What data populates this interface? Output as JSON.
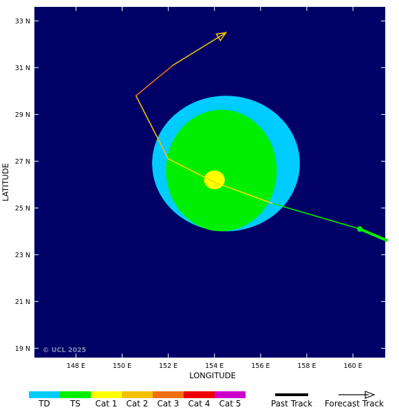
{
  "map": {
    "background_color": "#000066",
    "copyright": "© UCL 2025",
    "xlabel": "LONGITUDE",
    "ylabel": "LATITUDE",
    "xlim": [
      146.2,
      161.4
    ],
    "ylim": [
      18.6,
      33.6
    ],
    "x_ticks": [
      {
        "value": 148,
        "label": "148 E"
      },
      {
        "value": 150,
        "label": "150 E"
      },
      {
        "value": 152,
        "label": "152 E"
      },
      {
        "value": 154,
        "label": "154 E"
      },
      {
        "value": 156,
        "label": "156 E"
      },
      {
        "value": 158,
        "label": "158 E"
      },
      {
        "value": 160,
        "label": "160 E"
      }
    ],
    "y_ticks": [
      {
        "value": 19,
        "label": "19 N"
      },
      {
        "value": 21,
        "label": "21 N"
      },
      {
        "value": 23,
        "label": "23 N"
      },
      {
        "value": 25,
        "label": "25 N"
      },
      {
        "value": 27,
        "label": "27 N"
      },
      {
        "value": 29,
        "label": "29 N"
      },
      {
        "value": 31,
        "label": "31 N"
      },
      {
        "value": 33,
        "label": "33 N"
      }
    ]
  },
  "wind_fields": [
    {
      "category": "TD",
      "color": "#00ccff",
      "center": [
        154.5,
        26.9
      ],
      "rx_deg": 3.2,
      "ry_deg": 2.9
    },
    {
      "category": "TS",
      "color": "#00ee00",
      "center": [
        154.3,
        26.6
      ],
      "rx_deg": 2.4,
      "ry_deg": 2.6
    },
    {
      "category": "Cat 1",
      "color": "#ffff00",
      "center": [
        154.0,
        26.2
      ],
      "rx_deg": 0.45,
      "ry_deg": 0.4
    }
  ],
  "past_track": [
    {
      "lon": 161.5,
      "lat": 23.6
    },
    {
      "lon": 160.3,
      "lat": 24.1
    }
  ],
  "past_track_color": "#00ee00",
  "forecast_track": {
    "segments": [
      {
        "from": [
          160.3,
          24.1
        ],
        "to": [
          156.5,
          25.2
        ],
        "color": "#00ee00"
      },
      {
        "from": [
          156.5,
          25.2
        ],
        "to": [
          154.0,
          26.1
        ],
        "color": "#f0e000"
      },
      {
        "from": [
          154.0,
          26.1
        ],
        "to": [
          152.0,
          27.1
        ],
        "color": "#f0e000"
      },
      {
        "from": [
          152.0,
          27.1
        ],
        "to": [
          150.6,
          29.8
        ],
        "color": "#f5c000"
      },
      {
        "from": [
          150.6,
          29.8
        ],
        "to": [
          152.2,
          31.1
        ],
        "color": "#f07010"
      },
      {
        "from": [
          152.2,
          31.1
        ],
        "to": [
          154.5,
          32.5
        ],
        "color": "#f0c000"
      }
    ]
  },
  "legend": {
    "categories": [
      {
        "label": "TD",
        "color": "#00ccff"
      },
      {
        "label": "TS",
        "color": "#00ee00"
      },
      {
        "label": "Cat 1",
        "color": "#ffff00"
      },
      {
        "label": "Cat 2",
        "color": "#f5c000"
      },
      {
        "label": "Cat 3",
        "color": "#f07010"
      },
      {
        "label": "Cat 4",
        "color": "#ee0000"
      },
      {
        "label": "Cat 5",
        "color": "#cc00cc"
      }
    ],
    "past_track_label": "Past Track",
    "forecast_track_label": "Forecast Track"
  }
}
